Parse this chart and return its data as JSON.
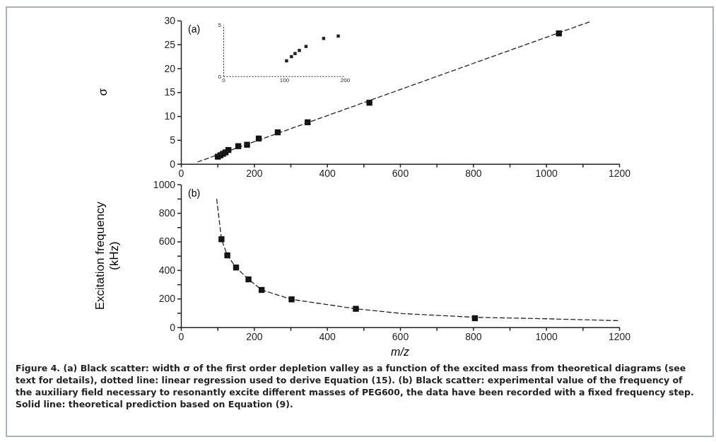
{
  "chart_data": [
    {
      "type": "scatter",
      "annotations": [
        "(a)"
      ],
      "ylabel": "σ",
      "xlim": [
        0,
        1200
      ],
      "ylim": [
        0,
        30
      ],
      "xticks": [
        0,
        {
          "value": 100,
          "label": null
        },
        200,
        {
          "value": 300,
          "label": null
        },
        400,
        {
          "value": 500,
          "label": null
        },
        600,
        {
          "value": 700,
          "label": null
        },
        800,
        {
          "value": 900,
          "label": null
        },
        1000,
        {
          "value": 1100,
          "label": null
        },
        1200
      ],
      "yticks": [
        0,
        5,
        10,
        15,
        20,
        25,
        30
      ],
      "series": [
        {
          "color": "#111111",
          "marker": "square",
          "x": [
            101,
            108,
            115,
            122,
            130,
            157,
            181,
            213,
            265,
            347,
            516,
            1035
          ],
          "values": [
            1.5,
            1.8,
            2.1,
            2.4,
            2.9,
            3.7,
            4.0,
            5.3,
            6.6,
            8.7,
            12.8,
            27.3
          ]
        },
        {
          "type": "line",
          "color": "#222222",
          "marker": "none",
          "line_style": "dashed",
          "x": [
            46,
            1118
          ],
          "values": [
            0.4,
            29.7
          ]
        }
      ]
    },
    {
      "type": "scatter",
      "annotations": [
        "(b)",
        "Figure 4. (a) Black scatter: width σ of the first order depletion valley as a function of the excited mass from theoretical diagrams (see text for details), dotted line: linear regression used to derive Equation (15). (b) Black scatter: experimental value of the frequency of the auxiliary field necessary to resonantly excite different masses of PEG600, the data have been recorded with a fixed frequency step. Solid line: theoretical prediction based on Equation (9)."
      ],
      "xlabel": "m/z",
      "ylabel": "Excitation frequency\n(kHz)",
      "xlim": [
        0,
        1200
      ],
      "ylim": [
        0,
        1000
      ],
      "xticks": [
        0,
        {
          "value": 100,
          "label": null
        },
        200,
        {
          "value": 300,
          "label": null
        },
        400,
        {
          "value": 500,
          "label": null
        },
        600,
        {
          "value": 700,
          "label": null
        },
        800,
        {
          "value": 900,
          "label": null
        },
        1000,
        {
          "value": 1100,
          "label": null
        },
        1200
      ],
      "yticks": [
        0,
        {
          "value": 100,
          "label": null
        },
        200,
        {
          "value": 300,
          "label": null
        },
        400,
        {
          "value": 500,
          "label": null
        },
        600,
        {
          "value": 700,
          "label": null
        },
        800,
        {
          "value": 900,
          "label": null
        },
        1000
      ],
      "series": [
        {
          "color": "#111111",
          "marker": "square",
          "x": [
            111,
            127,
            151,
            185,
            221,
            303,
            479,
            805
          ],
          "values": [
            616,
            503,
            418,
            335,
            261,
            195,
            129,
            63
          ]
        },
        {
          "type": "line",
          "color": "#222222",
          "marker": "none",
          "line_style": "dashed",
          "x": [
            98,
            111,
            127,
            151,
            185,
            221,
            303,
            479,
            605,
            800,
            1004,
            1196
          ],
          "values": [
            896,
            616,
            503,
            418,
            335,
            261,
            195,
            129,
            96,
            70,
            59,
            46
          ]
        }
      ]
    },
    {
      "type": "scatter",
      "xlim": [
        0,
        200
      ],
      "ylim": [
        0,
        5
      ],
      "xticks": [
        0,
        100,
        200
      ],
      "yticks": [
        0,
        5
      ],
      "series": [
        {
          "color": "#222222",
          "marker": "square",
          "x": [
            104,
            112,
            118,
            125,
            136,
            165,
            189
          ],
          "values": [
            1.49,
            1.9,
            2.2,
            2.5,
            2.89,
            3.67,
            3.9
          ]
        }
      ]
    }
  ]
}
